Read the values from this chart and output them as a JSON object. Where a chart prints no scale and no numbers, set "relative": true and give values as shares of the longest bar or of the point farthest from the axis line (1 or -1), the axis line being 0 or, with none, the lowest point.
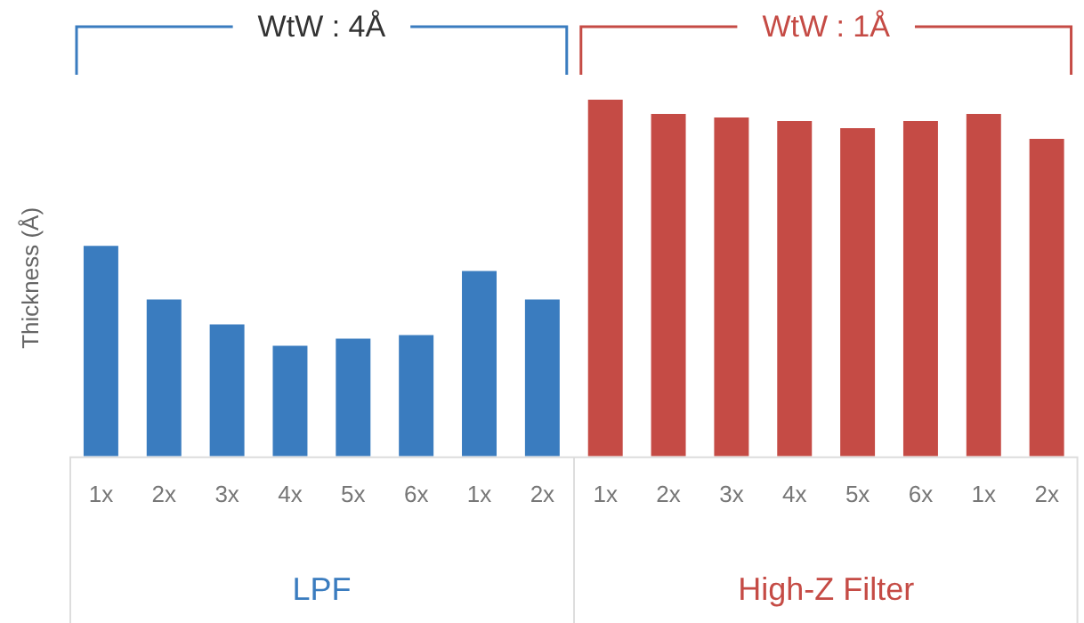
{
  "chart_data": {
    "type": "bar",
    "relative": true,
    "ylabel": "Thickness (Å)",
    "categories": [
      "1x",
      "2x",
      "3x",
      "4x",
      "5x",
      "6x",
      "1x",
      "2x",
      "1x",
      "2x",
      "3x",
      "4x",
      "5x",
      "6x",
      "1x",
      "2x"
    ],
    "values": [
      0.59,
      0.44,
      0.37,
      0.31,
      0.33,
      0.34,
      0.52,
      0.44,
      1,
      0.96,
      0.95,
      0.94,
      0.92,
      0.94,
      0.96,
      0.89
    ],
    "colors": [
      "#3a7cbf",
      "#3a7cbf",
      "#3a7cbf",
      "#3a7cbf",
      "#3a7cbf",
      "#3a7cbf",
      "#3a7cbf",
      "#3a7cbf",
      "#c54b45",
      "#c54b45",
      "#c54b45",
      "#c54b45",
      "#c54b45",
      "#c54b45",
      "#c54b45",
      "#c54b45"
    ],
    "annotations": [
      "WtW : 4Å",
      "WtW : 1Å",
      "LPF",
      "High-Z Filter"
    ],
    "grid": false,
    "legend": false
  }
}
